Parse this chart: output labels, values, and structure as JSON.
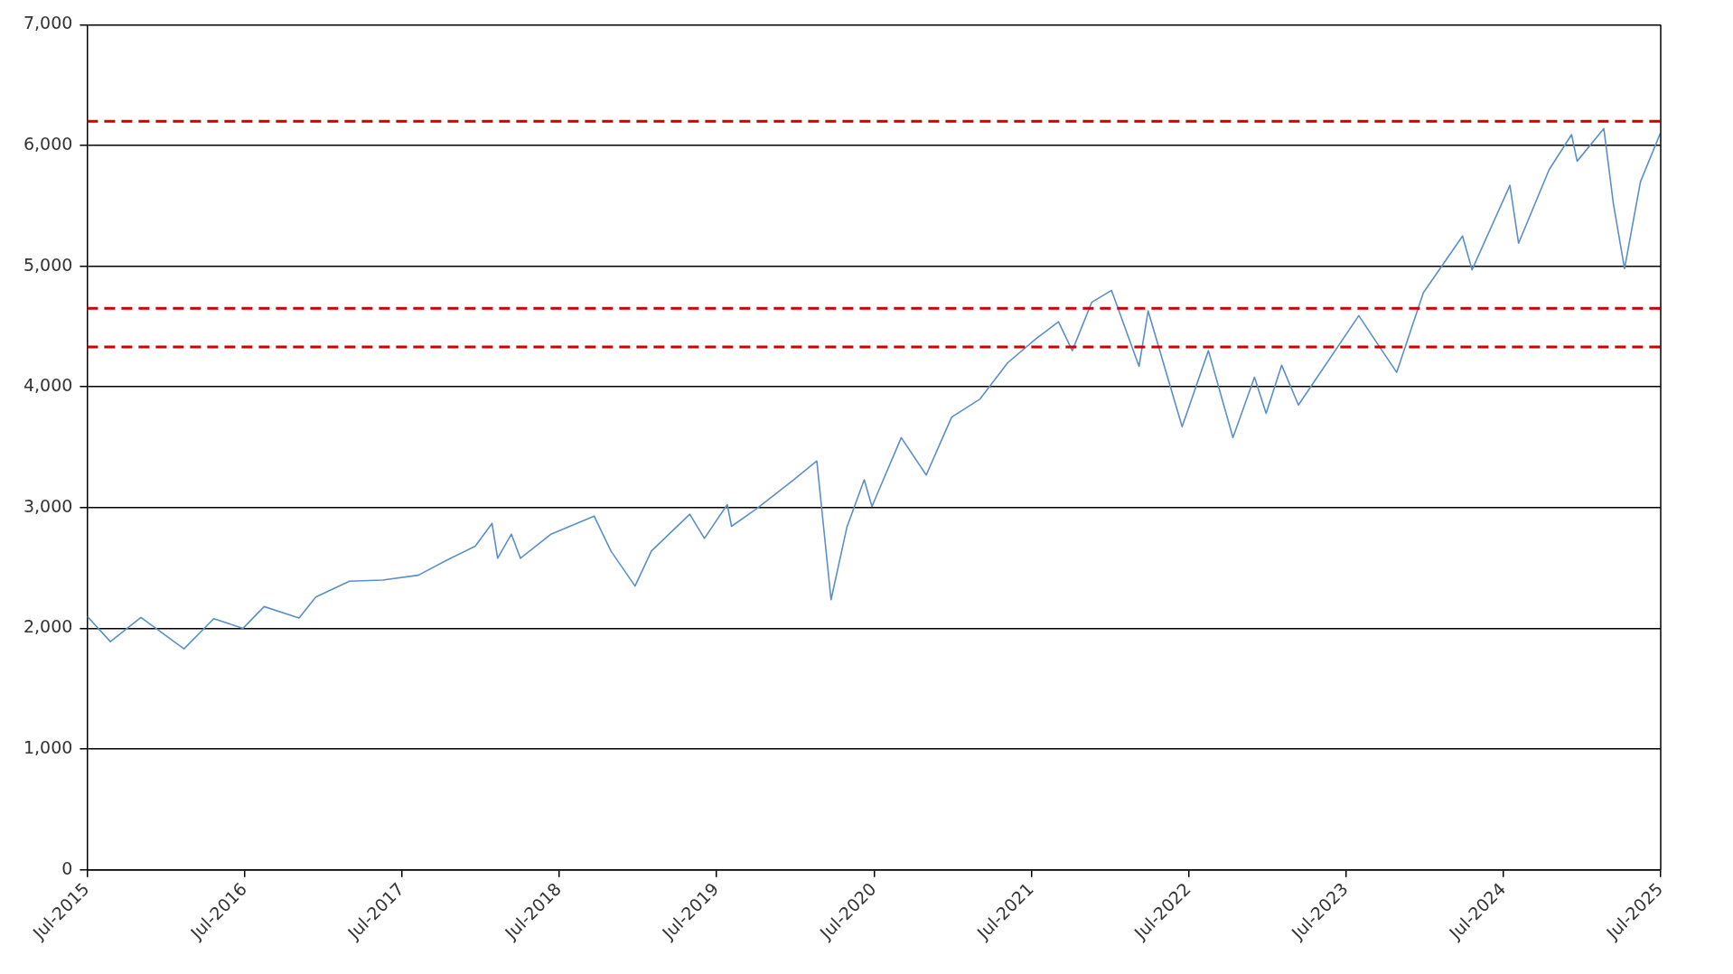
{
  "chart_data": {
    "type": "line",
    "x": [
      "2015-07-01",
      "2015-08-24",
      "2015-11-03",
      "2016-02-11",
      "2016-04-20",
      "2016-06-27",
      "2016-08-15",
      "2016-11-04",
      "2016-12-13",
      "2017-03-01",
      "2017-05-17",
      "2017-08-08",
      "2017-10-16",
      "2017-12-18",
      "2018-01-26",
      "2018-02-08",
      "2018-03-12",
      "2018-04-02",
      "2018-06-12",
      "2018-09-20",
      "2018-10-29",
      "2018-12-24",
      "2019-01-31",
      "2019-04-30",
      "2019-06-03",
      "2019-07-26",
      "2019-08-05",
      "2019-10-02",
      "2019-12-27",
      "2020-02-19",
      "2020-03-23",
      "2020-04-29",
      "2020-06-08",
      "2020-06-26",
      "2020-09-02",
      "2020-10-30",
      "2020-12-28",
      "2021-03-04",
      "2021-05-07",
      "2021-07-12",
      "2021-09-02",
      "2021-10-04",
      "2021-11-18",
      "2022-01-03",
      "2022-03-08",
      "2022-03-29",
      "2022-06-16",
      "2022-08-16",
      "2022-10-12",
      "2022-12-01",
      "2022-12-28",
      "2023-02-02",
      "2023-03-13",
      "2023-07-31",
      "2023-10-27",
      "2023-12-28",
      "2024-03-28",
      "2024-04-19",
      "2024-07-16",
      "2024-08-05",
      "2024-10-15",
      "2024-12-06",
      "2024-12-19",
      "2025-02-19",
      "2025-03-13",
      "2025-04-08",
      "2025-05-15",
      "2025-06-30"
    ],
    "series": [
      {
        "color": "#5b8fc9",
        "values": [
          2100,
          1890,
          2090,
          1830,
          2080,
          2000,
          2180,
          2085,
          2260,
          2390,
          2400,
          2440,
          2570,
          2680,
          2870,
          2580,
          2780,
          2580,
          2780,
          2930,
          2640,
          2350,
          2640,
          2945,
          2745,
          3025,
          2845,
          2990,
          3230,
          3386,
          2237,
          2840,
          3230,
          3010,
          3580,
          3270,
          3750,
          3900,
          4200,
          4400,
          4540,
          4300,
          4700,
          4800,
          4170,
          4630,
          3670,
          4300,
          3580,
          4080,
          3780,
          4180,
          3850,
          4590,
          4120,
          4780,
          5250,
          4970,
          5670,
          5190,
          5800,
          6090,
          5870,
          6140,
          5520,
          4980,
          5700,
          6100
        ]
      }
    ],
    "xlim": [
      "2015-07-01",
      "2025-07-01"
    ],
    "xticks": [
      {
        "value": "2015-07-01",
        "label": "Jul-2015"
      },
      {
        "value": "2016-07-01",
        "label": "Jul-2016"
      },
      {
        "value": "2017-07-01",
        "label": "Jul-2017"
      },
      {
        "value": "2018-07-01",
        "label": "Jul-2018"
      },
      {
        "value": "2019-07-01",
        "label": "Jul-2019"
      },
      {
        "value": "2020-07-01",
        "label": "Jul-2020"
      },
      {
        "value": "2021-07-01",
        "label": "Jul-2021"
      },
      {
        "value": "2022-07-01",
        "label": "Jul-2022"
      },
      {
        "value": "2023-07-01",
        "label": "Jul-2023"
      },
      {
        "value": "2024-07-01",
        "label": "Jul-2024"
      },
      {
        "value": "2025-07-01",
        "label": "Jul-2025"
      }
    ],
    "ylim": [
      0,
      7000
    ],
    "yticks": [
      {
        "value": 0,
        "label": "0"
      },
      {
        "value": 1000,
        "label": "1,000"
      },
      {
        "value": 2000,
        "label": "2,000"
      },
      {
        "value": 3000,
        "label": "3,000"
      },
      {
        "value": 4000,
        "label": "4,000"
      },
      {
        "value": 5000,
        "label": "5,000"
      },
      {
        "value": 6000,
        "label": "6,000"
      },
      {
        "value": 7000,
        "label": "7,000"
      }
    ],
    "ref_lines": [
      {
        "axis": "y",
        "value": 6200,
        "color": "#cc0000",
        "line_style": "dashed"
      },
      {
        "axis": "y",
        "value": 4650,
        "color": "#cc0000",
        "line_style": "dashed"
      },
      {
        "axis": "y",
        "value": 4330,
        "color": "#cc0000",
        "line_style": "dashed"
      }
    ],
    "grid": "y",
    "legend": false,
    "marker": "none",
    "line_style": "solid"
  }
}
